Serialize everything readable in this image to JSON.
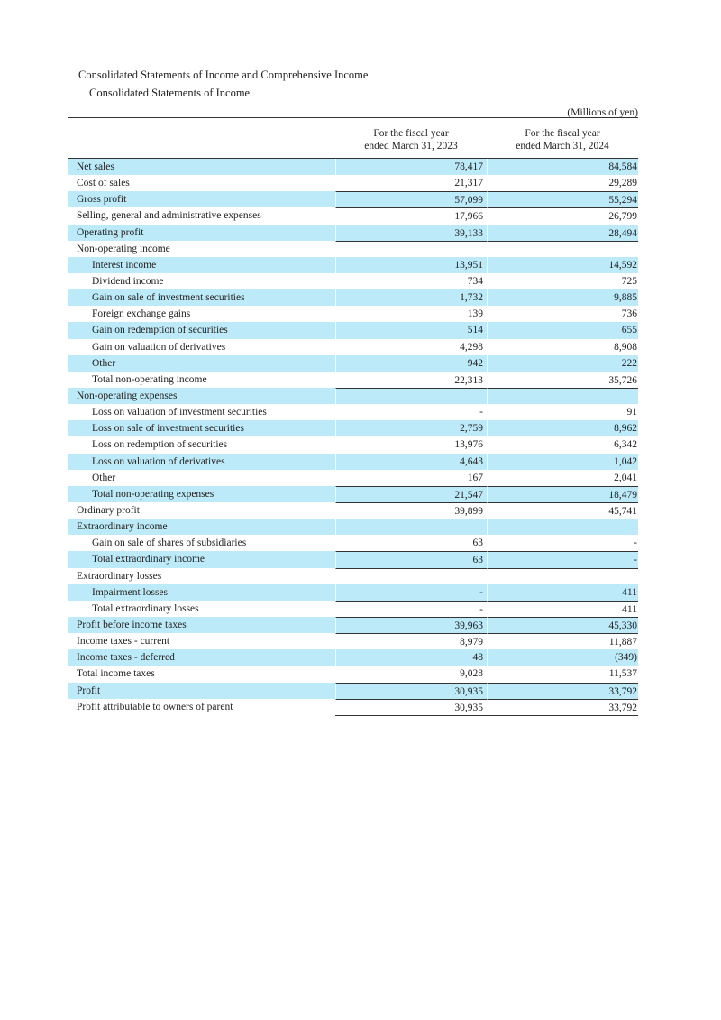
{
  "title": "Consolidated Statements of Income and Comprehensive Income",
  "subtitle": "Consolidated Statements of Income",
  "unit": "(Millions of yen)",
  "columns": [
    {
      "line1": "For the fiscal year",
      "line2": "ended March 31, 2023"
    },
    {
      "line1": "For the fiscal year",
      "line2": "ended March 31, 2024"
    }
  ],
  "row_shading_color": "#bdeaf8",
  "rows": [
    {
      "label": "Net sales",
      "indent": false,
      "v2023": "78,417",
      "v2024": "84,584",
      "line_above": false
    },
    {
      "label": "Cost of sales",
      "indent": false,
      "v2023": "21,317",
      "v2024": "29,289",
      "line_above": false
    },
    {
      "label": "Gross profit",
      "indent": false,
      "v2023": "57,099",
      "v2024": "55,294",
      "line_above": true
    },
    {
      "label": "Selling, general and administrative expenses",
      "indent": false,
      "v2023": "17,966",
      "v2024": "26,799",
      "line_above": true
    },
    {
      "label": "Operating profit",
      "indent": false,
      "v2023": "39,133",
      "v2024": "28,494",
      "line_above": true
    },
    {
      "label": "Non-operating income",
      "indent": false,
      "v2023": "",
      "v2024": "",
      "line_above": true
    },
    {
      "label": "Interest income",
      "indent": true,
      "v2023": "13,951",
      "v2024": "14,592",
      "line_above": false
    },
    {
      "label": "Dividend income",
      "indent": true,
      "v2023": "734",
      "v2024": "725",
      "line_above": false
    },
    {
      "label": "Gain on sale of investment securities",
      "indent": true,
      "v2023": "1,732",
      "v2024": "9,885",
      "line_above": false
    },
    {
      "label": "Foreign exchange gains",
      "indent": true,
      "v2023": "139",
      "v2024": "736",
      "line_above": false
    },
    {
      "label": "Gain on redemption of securities",
      "indent": true,
      "v2023": "514",
      "v2024": "655",
      "line_above": false
    },
    {
      "label": "Gain on valuation of derivatives",
      "indent": true,
      "v2023": "4,298",
      "v2024": "8,908",
      "line_above": false
    },
    {
      "label": "Other",
      "indent": true,
      "v2023": "942",
      "v2024": "222",
      "line_above": false
    },
    {
      "label": "Total non-operating income",
      "indent": true,
      "v2023": "22,313",
      "v2024": "35,726",
      "line_above": true
    },
    {
      "label": "Non-operating expenses",
      "indent": false,
      "v2023": "",
      "v2024": "",
      "line_above": true
    },
    {
      "label": "Loss on valuation of investment securities",
      "indent": true,
      "v2023": "-",
      "v2024": "91",
      "line_above": false
    },
    {
      "label": "Loss on sale of investment securities",
      "indent": true,
      "v2023": "2,759",
      "v2024": "8,962",
      "line_above": false
    },
    {
      "label": "Loss on redemption of securities",
      "indent": true,
      "v2023": "13,976",
      "v2024": "6,342",
      "line_above": false
    },
    {
      "label": "Loss on valuation of derivatives",
      "indent": true,
      "v2023": "4,643",
      "v2024": "1,042",
      "line_above": false
    },
    {
      "label": "Other",
      "indent": true,
      "v2023": "167",
      "v2024": "2,041",
      "line_above": false
    },
    {
      "label": "Total non-operating expenses",
      "indent": true,
      "v2023": "21,547",
      "v2024": "18,479",
      "line_above": true
    },
    {
      "label": "Ordinary profit",
      "indent": false,
      "v2023": "39,899",
      "v2024": "45,741",
      "line_above": true
    },
    {
      "label": "Extraordinary income",
      "indent": false,
      "v2023": "",
      "v2024": "",
      "line_above": true
    },
    {
      "label": "Gain on sale of shares of subsidiaries",
      "indent": true,
      "v2023": "63",
      "v2024": "-",
      "line_above": false
    },
    {
      "label": "Total extraordinary income",
      "indent": true,
      "v2023": "63",
      "v2024": "-",
      "line_above": true
    },
    {
      "label": "Extraordinary losses",
      "indent": false,
      "v2023": "",
      "v2024": "",
      "line_above": true
    },
    {
      "label": "Impairment losses",
      "indent": true,
      "v2023": "-",
      "v2024": "411",
      "line_above": false
    },
    {
      "label": "Total extraordinary losses",
      "indent": true,
      "v2023": "-",
      "v2024": "411",
      "line_above": true
    },
    {
      "label": "Profit before income taxes",
      "indent": false,
      "v2023": "39,963",
      "v2024": "45,330",
      "line_above": true
    },
    {
      "label": "Income taxes - current",
      "indent": false,
      "v2023": "8,979",
      "v2024": "11,887",
      "line_above": true
    },
    {
      "label": "Income taxes - deferred",
      "indent": false,
      "v2023": "48",
      "v2024": "(349)",
      "line_above": false
    },
    {
      "label": "Total income taxes",
      "indent": false,
      "v2023": "9,028",
      "v2024": "11,537",
      "line_above": false
    },
    {
      "label": "Profit",
      "indent": false,
      "v2023": "30,935",
      "v2024": "33,792",
      "line_above": true
    },
    {
      "label": "Profit attributable to owners of parent",
      "indent": false,
      "v2023": "30,935",
      "v2024": "33,792",
      "line_above": true
    }
  ]
}
